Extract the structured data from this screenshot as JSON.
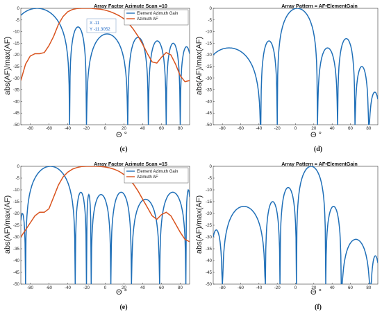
{
  "colors": {
    "blue": "#1f6fb8",
    "orange": "#d9531e"
  },
  "panels": {
    "c": {
      "label": "(c)",
      "title": "Array Factor Azimute Scan =10",
      "xlabel": "Θ °",
      "ylabel": "abs(AF)/max(AF)"
    },
    "d": {
      "label": "(d)",
      "title": "Array Pattern = AF•ElementGain",
      "xlabel": "Θ °",
      "ylabel": "abs(AF)/max(AF)"
    },
    "e": {
      "label": "(e)",
      "title": "Array Factor Azimute Scan =15",
      "xlabel": "Θ °",
      "ylabel": "abs(AF)/max(AF)"
    },
    "f": {
      "label": "(f)",
      "title": "Array Pattern = AF•ElementGain",
      "xlabel": "Θ °",
      "ylabel": "abs(AF)/max(AF)"
    }
  },
  "datatip": {
    "x_text": "X -11",
    "y_text": "Y -11.3052"
  },
  "chart_data": [
    {
      "type": "line",
      "panel": "c",
      "title": "Array Factor Azimute Scan =10",
      "xlabel": "Θ °",
      "ylabel": "abs(AF)/max(AF)",
      "xlim": [
        -90,
        90
      ],
      "ylim": [
        -50,
        0
      ],
      "xticks": [
        -80,
        -60,
        -40,
        -20,
        0,
        20,
        40,
        60,
        80
      ],
      "yticks": [
        0,
        -5,
        -10,
        -15,
        -20,
        -25,
        -30,
        -35,
        -40,
        -45,
        -50
      ],
      "legend": "top-right",
      "series": [
        {
          "name": "Element Azimuth Gain",
          "color": "blue",
          "kind": "array",
          "center": -58,
          "nulls": [
            -38,
            -20,
            24,
            46,
            65,
            80
          ],
          "peaks": [
            -8,
            -11,
            -12.5,
            -14,
            -15,
            -16.5,
            -18
          ]
        },
        {
          "name": "Azimuth AF",
          "color": "orange",
          "x": [
            -90,
            -85,
            -80,
            -75,
            -70,
            -65,
            -60,
            -55,
            -50,
            -45,
            -40,
            -35,
            -30,
            -25,
            -20,
            -15,
            -10,
            -5,
            0,
            5,
            10,
            15,
            20,
            25,
            30,
            35,
            40,
            45,
            50,
            55,
            60,
            65,
            70,
            75,
            80,
            85,
            90
          ],
          "y": [
            -31,
            -24,
            -20.5,
            -19.5,
            -19.5,
            -19,
            -16,
            -12,
            -7,
            -3.5,
            -1.5,
            -0.5,
            -0.1,
            0,
            0,
            0,
            -0.2,
            -0.4,
            -0.8,
            -1.4,
            -2.2,
            -3.2,
            -4.5,
            -6.5,
            -9,
            -12,
            -15.5,
            -19.5,
            -23,
            -23.5,
            -21,
            -19,
            -20,
            -24,
            -29,
            -31.5,
            -31
          ]
        }
      ]
    },
    {
      "type": "line",
      "panel": "d",
      "title": "Array Pattern = AF•ElementGain",
      "xlabel": "Θ °",
      "ylabel": "abs(AF)/max(AF)",
      "xlim": [
        -90,
        90
      ],
      "ylim": [
        -50,
        0
      ],
      "xticks": [
        -80,
        -60,
        -40,
        -20,
        0,
        20,
        40,
        60,
        80
      ],
      "yticks": [
        0,
        -5,
        -10,
        -15,
        -20,
        -25,
        -30,
        -35,
        -40,
        -45,
        -50
      ],
      "series": [
        {
          "name": "",
          "color": "blue",
          "kind": "array",
          "center": 9,
          "nulls": [
            -38,
            -20,
            24,
            46,
            65,
            80
          ],
          "peaks": [
            -14,
            -17,
            -17,
            -13,
            -25,
            -36,
            -38
          ],
          "edge": -38
        }
      ]
    },
    {
      "type": "line",
      "panel": "e",
      "title": "Array Factor Azimute Scan =15",
      "xlabel": "Θ °",
      "ylabel": "abs(AF)/max(AF)",
      "xlim": [
        -90,
        90
      ],
      "ylim": [
        -50,
        0
      ],
      "xticks": [
        -80,
        -60,
        -40,
        -20,
        0,
        20,
        40,
        60,
        80
      ],
      "yticks": [
        0,
        -5,
        -10,
        -15,
        -20,
        -25,
        -30,
        -35,
        -40,
        -45,
        -50
      ],
      "legend": "top-right",
      "series": [
        {
          "name": "Element Azimuth Gain",
          "color": "blue",
          "kind": "array",
          "center": -47,
          "nulls": [
            -85,
            -32,
            -20,
            -15,
            6,
            28,
            58,
            86
          ],
          "peaks": [
            -20,
            -11,
            -12,
            -12,
            -11,
            -14,
            -11,
            -10,
            -26
          ]
        },
        {
          "name": "Azimuth AF",
          "color": "orange",
          "x": [
            -90,
            -85,
            -80,
            -75,
            -70,
            -65,
            -60,
            -55,
            -50,
            -45,
            -40,
            -35,
            -30,
            -25,
            -20,
            -15,
            -10,
            -5,
            0,
            5,
            10,
            15,
            20,
            25,
            30,
            35,
            40,
            45,
            50,
            55,
            60,
            65,
            70,
            75,
            80,
            85,
            90
          ],
          "y": [
            -30,
            -27,
            -24,
            -21,
            -19.5,
            -19.5,
            -18,
            -13,
            -8,
            -4.5,
            -2.5,
            -1.2,
            -0.5,
            -0.1,
            0,
            0,
            0,
            -0.1,
            -0.3,
            -0.7,
            -1.3,
            -2.2,
            -3.5,
            -5.2,
            -7.5,
            -10.5,
            -14,
            -17.5,
            -21,
            -22.5,
            -20.5,
            -19.5,
            -21,
            -24.5,
            -28,
            -31,
            -32
          ]
        }
      ]
    },
    {
      "type": "line",
      "panel": "f",
      "title": "Array Pattern = AF•ElementGain",
      "xlabel": "Θ °",
      "ylabel": "abs(AF)/max(AF)",
      "xlim": [
        -90,
        90
      ],
      "ylim": [
        -50,
        0
      ],
      "xticks": [
        -80,
        -60,
        -40,
        -20,
        0,
        20,
        40,
        60,
        80
      ],
      "yticks": [
        0,
        -5,
        -10,
        -15,
        -20,
        -25,
        -30,
        -35,
        -40,
        -45,
        -50
      ],
      "series": [
        {
          "name": "",
          "color": "blue",
          "kind": "array",
          "center": 14,
          "nulls": [
            -80,
            -33,
            -17,
            1,
            33,
            50,
            82
          ],
          "peaks": [
            -9,
            -15,
            -17,
            -27,
            -17,
            -31,
            -38
          ],
          "edge": -45
        }
      ]
    }
  ]
}
